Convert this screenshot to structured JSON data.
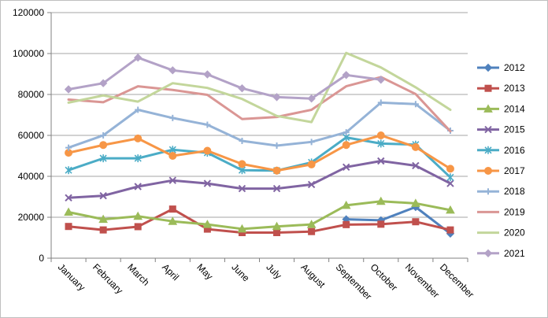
{
  "chart_data": {
    "type": "line",
    "categories": [
      "January",
      "February",
      "March",
      "April",
      "May",
      "June",
      "July",
      "August",
      "September",
      "October",
      "November",
      "December"
    ],
    "ylim": [
      0,
      120000
    ],
    "yticks": [
      0,
      20000,
      40000,
      60000,
      80000,
      100000,
      120000
    ],
    "ytick_labels": [
      "0",
      "20000",
      "40000",
      "60000",
      "80000",
      "100000",
      "120000"
    ],
    "grid": "horizontal",
    "legend_position": "right",
    "series": [
      {
        "name": "2012",
        "color": "#4f81bd",
        "marker": "diamond",
        "values": [
          null,
          null,
          null,
          null,
          null,
          null,
          null,
          null,
          19000,
          18500,
          25000,
          12000
        ]
      },
      {
        "name": "2013",
        "color": "#c0504d",
        "marker": "square",
        "values": [
          15500,
          13800,
          15400,
          24000,
          14200,
          12500,
          12500,
          13000,
          16400,
          16600,
          17800,
          13800
        ]
      },
      {
        "name": "2014",
        "color": "#9bbb59",
        "marker": "triangle",
        "values": [
          22500,
          19000,
          20500,
          18000,
          16500,
          14300,
          15500,
          16500,
          25800,
          27800,
          26800,
          23500
        ]
      },
      {
        "name": "2015",
        "color": "#8064a2",
        "marker": "x",
        "values": [
          29500,
          30500,
          35000,
          38000,
          36500,
          34000,
          34000,
          36000,
          44500,
          47500,
          45200,
          36500
        ]
      },
      {
        "name": "2016",
        "color": "#4bacc6",
        "marker": "star",
        "values": [
          43000,
          48800,
          48800,
          53000,
          51500,
          43000,
          42800,
          46800,
          59000,
          56000,
          55500,
          39500
        ]
      },
      {
        "name": "2017",
        "color": "#f79646",
        "marker": "circle",
        "values": [
          51500,
          55300,
          58500,
          50000,
          52500,
          46000,
          42800,
          45800,
          55300,
          60000,
          54300,
          43700
        ]
      },
      {
        "name": "2018",
        "color": "#95b3d7",
        "marker": "plus",
        "values": [
          54000,
          60000,
          72500,
          68500,
          65200,
          57300,
          55000,
          56800,
          61500,
          76000,
          75300,
          62300
        ]
      },
      {
        "name": "2019",
        "color": "#da9694",
        "marker": "none",
        "values": [
          77500,
          76200,
          84000,
          82200,
          79800,
          68000,
          69000,
          72500,
          84000,
          88500,
          80200,
          62000
        ]
      },
      {
        "name": "2020",
        "color": "#c3d69b",
        "marker": "none",
        "values": [
          76000,
          79500,
          76500,
          85500,
          83200,
          77800,
          69500,
          66500,
          100300,
          93200,
          83500,
          72500
        ]
      },
      {
        "name": "2021",
        "color": "#b3a2c7",
        "marker": "diamond",
        "values": [
          82500,
          85500,
          98000,
          91800,
          89800,
          83000,
          78700,
          78000,
          89500,
          87200,
          null,
          null
        ]
      }
    ]
  }
}
